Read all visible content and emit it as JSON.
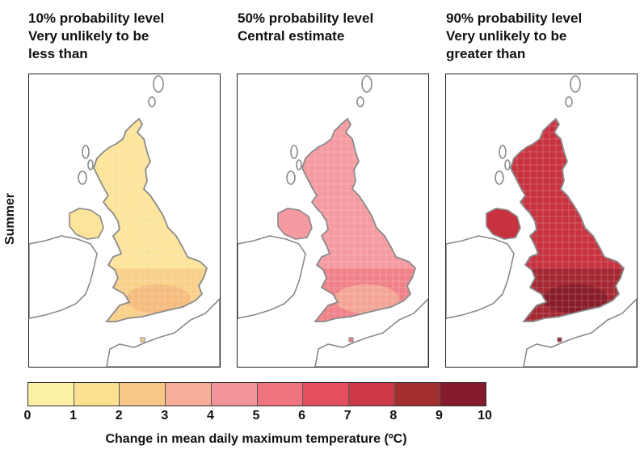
{
  "panels": [
    {
      "title_line1": "10% probability level",
      "title_line2": "Very unlikely to be",
      "title_line3": "less than",
      "base": "#fce49a",
      "accent": "#f8cd85",
      "hot": "#f4b37a"
    },
    {
      "title_line1": "50% probability level",
      "title_line2": "Central estimate",
      "title_line3": "",
      "base": "#f59aa0",
      "accent": "#ef7c84",
      "hot": "#f4b39a"
    },
    {
      "title_line1": "90% probability level",
      "title_line2": "Very unlikely to be",
      "title_line3": "greater than",
      "base": "#c8323f",
      "accent": "#9e2630",
      "hot": "#7a1823"
    }
  ],
  "row_label": "Summer",
  "colorbar": {
    "colors": [
      "#fdf1a6",
      "#fbe092",
      "#f7c787",
      "#f6ae98",
      "#f3939a",
      "#ef7480",
      "#e34f5f",
      "#cc3847",
      "#a3302f",
      "#841c2e"
    ],
    "ticks": [
      "0",
      "1",
      "2",
      "3",
      "4",
      "5",
      "6",
      "7",
      "8",
      "9",
      "10"
    ],
    "title": "Change in mean daily maximum temperature (ºC)"
  },
  "coast_color": "#8a8a8a"
}
